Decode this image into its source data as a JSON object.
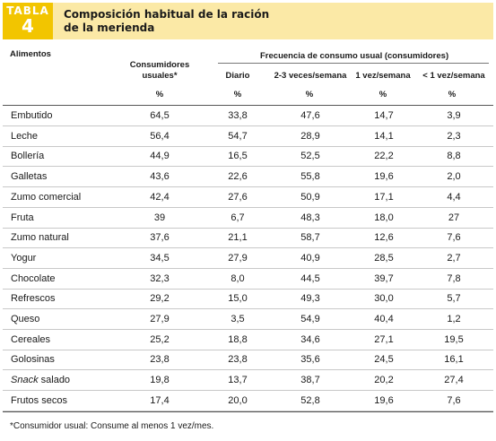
{
  "header": {
    "tabla_label": "TABLA",
    "tabla_number": "4",
    "title_line1": "Composición habitual de la ración",
    "title_line2": "de la merienda"
  },
  "columns": {
    "alimentos": "Alimentos",
    "consumidores": "Consumidores usuales*",
    "frecuencia": "Frecuencia de consumo usual (consumidores)",
    "diario": "Diario",
    "veces_semana": "2-3 veces/semana",
    "vez_semana": "1 vez/semana",
    "menos_vez_semana": "< 1 vez/semana",
    "pct": "%"
  },
  "rows": [
    {
      "name": "Embutido",
      "consumidores": "64,5",
      "diario": "33,8",
      "veces": "47,6",
      "vez": "14,7",
      "menos": "3,9"
    },
    {
      "name": "Leche",
      "consumidores": "56,4",
      "diario": "54,7",
      "veces": "28,9",
      "vez": "14,1",
      "menos": "2,3"
    },
    {
      "name": "Bollería",
      "consumidores": "44,9",
      "diario": "16,5",
      "veces": "52,5",
      "vez": "22,2",
      "menos": "8,8"
    },
    {
      "name": "Galletas",
      "consumidores": "43,6",
      "diario": "22,6",
      "veces": "55,8",
      "vez": "19,6",
      "menos": "2,0"
    },
    {
      "name": "Zumo comercial",
      "consumidores": "42,4",
      "diario": "27,6",
      "veces": "50,9",
      "vez": "17,1",
      "menos": "4,4"
    },
    {
      "name": "Fruta",
      "consumidores": "39",
      "diario": "6,7",
      "veces": "48,3",
      "vez": "18,0",
      "menos": "27"
    },
    {
      "name": "Zumo natural",
      "consumidores": "37,6",
      "diario": "21,1",
      "veces": "58,7",
      "vez": "12,6",
      "menos": "7,6"
    },
    {
      "name": "Yogur",
      "consumidores": "34,5",
      "diario": "27,9",
      "veces": "40,9",
      "vez": "28,5",
      "menos": "2,7"
    },
    {
      "name": "Chocolate",
      "consumidores": "32,3",
      "diario": "8,0",
      "veces": "44,5",
      "vez": "39,7",
      "menos": "7,8"
    },
    {
      "name": "Refrescos",
      "consumidores": "29,2",
      "diario": "15,0",
      "veces": "49,3",
      "vez": "30,0",
      "menos": "5,7"
    },
    {
      "name": "Queso",
      "consumidores": "27,9",
      "diario": "3,5",
      "veces": "54,9",
      "vez": "40,4",
      "menos": "1,2"
    },
    {
      "name": "Cereales",
      "consumidores": "25,2",
      "diario": "18,8",
      "veces": "34,6",
      "vez": "27,1",
      "menos": "19,5"
    },
    {
      "name": "Golosinas",
      "consumidores": "23,8",
      "diario": "23,8",
      "veces": "35,6",
      "vez": "24,5",
      "menos": "16,1"
    },
    {
      "name_italic": "Snack",
      "name_rest": " salado",
      "consumidores": "19,8",
      "diario": "13,7",
      "veces": "38,7",
      "vez": "20,2",
      "menos": "27,4"
    },
    {
      "name": "Frutos secos",
      "consumidores": "17,4",
      "diario": "20,0",
      "veces": "52,8",
      "vez": "19,6",
      "menos": "7,6"
    }
  ],
  "footnote": "*Consumidor usual: Consume al menos 1 vez/mes.",
  "colors": {
    "tabla_box": "#f2c500",
    "title_box": "#fbe9a6"
  }
}
